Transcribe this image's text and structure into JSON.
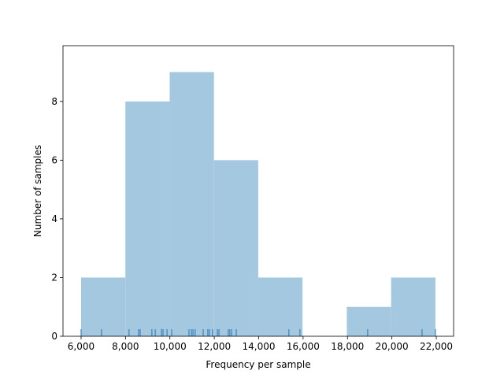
{
  "chart_data": {
    "type": "histogram",
    "xlabel": "Frequency per sample",
    "ylabel": "Number of samples",
    "bins": [
      6000,
      7995,
      9990,
      11985,
      13980,
      15975,
      17970,
      19965,
      21960
    ],
    "values": [
      2,
      8,
      9,
      6,
      2,
      0,
      1,
      2
    ],
    "color": "#a5c8e1",
    "rug": [
      6000,
      6920,
      8160,
      8590,
      8660,
      9190,
      9340,
      9620,
      9690,
      9870,
      10080,
      10860,
      10970,
      11040,
      11140,
      11500,
      11710,
      11780,
      11920,
      12140,
      12210,
      12630,
      12700,
      12780,
      12990,
      15360,
      15860,
      18910,
      21360,
      21960
    ],
    "rug_color": "#1f77b4",
    "xlim": [
      5185,
      22780
    ],
    "ylim": [
      0,
      9.9
    ],
    "xticks": [
      {
        "value": 6000,
        "label": "6,000"
      },
      {
        "value": 8000,
        "label": "8,000"
      },
      {
        "value": 10000,
        "label": "10,000"
      },
      {
        "value": 12000,
        "label": "12,000"
      },
      {
        "value": 14000,
        "label": "14,000"
      },
      {
        "value": 16000,
        "label": "16,000"
      },
      {
        "value": 18000,
        "label": "18,000"
      },
      {
        "value": 20000,
        "label": "20,000"
      },
      {
        "value": 22000,
        "label": "22,000"
      }
    ],
    "yticks": [
      0,
      2,
      4,
      6,
      8
    ]
  }
}
